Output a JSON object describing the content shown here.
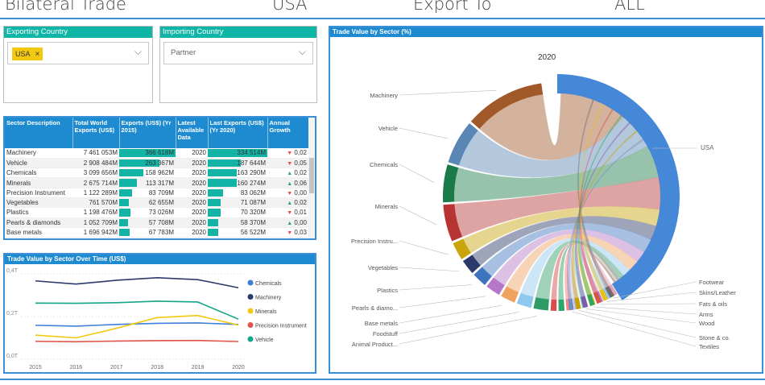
{
  "header": {
    "title": "Bilateral Trade",
    "country": "USA",
    "flow": "Export To",
    "partner": "ALL"
  },
  "exporting": {
    "title": "Exporting Country",
    "chip": "USA",
    "chip_remove": "×",
    "chevron": "⌵"
  },
  "importing": {
    "title": "Importing Country",
    "placeholder": "Partner",
    "chevron": "⌵"
  },
  "table": {
    "headers": [
      "Sector Description",
      "Total World Exports (US$)",
      "Exports (US$) (Yr 2015)",
      "Latest Available Data",
      "Last Exports (US$) (Yr 2020)",
      "Annual Growth"
    ],
    "rows": [
      {
        "sector": "Machinery",
        "total": "7 461 053M",
        "exp2015": "366 618M",
        "f2015": 1.0,
        "year": "2020",
        "last": "334 514M",
        "flast": 1.0,
        "dir": "down",
        "growth": "0,02"
      },
      {
        "sector": "Vehicle",
        "total": "2 908 484M",
        "exp2015": "263 367M",
        "f2015": 0.72,
        "year": "2020",
        "last": "187 644M",
        "flast": 0.56,
        "dir": "down",
        "growth": "0,05"
      },
      {
        "sector": "Chemicals",
        "total": "3 099 656M",
        "exp2015": "158 962M",
        "f2015": 0.43,
        "year": "2020",
        "last": "163 290M",
        "flast": 0.49,
        "dir": "up",
        "growth": "0,02"
      },
      {
        "sector": "Minerals",
        "total": "2 675 714M",
        "exp2015": "113 317M",
        "f2015": 0.31,
        "year": "2020",
        "last": "160 274M",
        "flast": 0.48,
        "dir": "up",
        "growth": "0,06"
      },
      {
        "sector": "Precision Instrument",
        "total": "1 122 289M",
        "exp2015": "83 709M",
        "f2015": 0.23,
        "year": "2020",
        "last": "83 062M",
        "flast": 0.25,
        "dir": "down",
        "growth": "0,00"
      },
      {
        "sector": "Vegetables",
        "total": "761 570M",
        "exp2015": "62 655M",
        "f2015": 0.17,
        "year": "2020",
        "last": "71 087M",
        "flast": 0.21,
        "dir": "up",
        "growth": "0,02"
      },
      {
        "sector": "Plastics",
        "total": "1 198 476M",
        "exp2015": "73 026M",
        "f2015": 0.2,
        "year": "2020",
        "last": "70 320M",
        "flast": 0.21,
        "dir": "down",
        "growth": "0,01"
      },
      {
        "sector": "Pearls & diamonds",
        "total": "1 052 709M",
        "exp2015": "57 708M",
        "f2015": 0.16,
        "year": "2020",
        "last": "58 370M",
        "flast": 0.17,
        "dir": "up",
        "growth": "0,00"
      },
      {
        "sector": "Base metals",
        "total": "1 696 942M",
        "exp2015": "67 783M",
        "f2015": 0.18,
        "year": "2020",
        "last": "56 522M",
        "flast": 0.17,
        "dir": "down",
        "growth": "0,03"
      }
    ]
  },
  "chart_data": [
    {
      "type": "line",
      "title": "Trade Value by Sector Over Time (US$)",
      "x": [
        2015,
        2016,
        2017,
        2018,
        2019,
        2020
      ],
      "y_ticks": [
        "0,4T",
        "0,2T",
        "0,0T"
      ],
      "ylim": [
        0,
        0.4
      ],
      "legend": "right",
      "series": [
        {
          "name": "Chemicals",
          "color": "#3d7fd6",
          "values": [
            0.159,
            0.155,
            0.163,
            0.168,
            0.17,
            0.163
          ]
        },
        {
          "name": "Machinery",
          "color": "#2b3a6b",
          "values": [
            0.367,
            0.352,
            0.37,
            0.382,
            0.373,
            0.335
          ]
        },
        {
          "name": "Minerals",
          "color": "#f2c811",
          "values": [
            0.113,
            0.1,
            0.145,
            0.195,
            0.205,
            0.16
          ]
        },
        {
          "name": "Precision Instrument",
          "color": "#e0534a",
          "values": [
            0.084,
            0.082,
            0.085,
            0.087,
            0.088,
            0.083
          ]
        },
        {
          "name": "Vehicle",
          "color": "#17a589",
          "values": [
            0.263,
            0.262,
            0.265,
            0.272,
            0.268,
            0.188
          ]
        }
      ]
    },
    {
      "type": "chord",
      "title": "Trade Value by Sector (%)",
      "subtitle": "2020",
      "target": "USA",
      "sectors_left": [
        {
          "name": "Machinery",
          "color": "#a2592a",
          "value": 334514
        },
        {
          "name": "Vehicle",
          "color": "#5a86b5",
          "value": 187644
        },
        {
          "name": "Chemicals",
          "color": "#1b7a4a",
          "value": 163290
        },
        {
          "name": "Minerals",
          "color": "#b83434",
          "value": 160274
        },
        {
          "name": "Precision Instru...",
          "color": "#c9a40a",
          "value": 83062
        },
        {
          "name": "Vegetables",
          "color": "#2b3a6b",
          "value": 71087
        },
        {
          "name": "Plastics",
          "color": "#3d74bd",
          "value": 70320
        },
        {
          "name": "Pearls & diamo...",
          "color": "#b577c7",
          "value": 58370
        },
        {
          "name": "Base metals",
          "color": "#f0a25f",
          "value": 56522
        },
        {
          "name": "Foodstuff",
          "color": "#8fc8ef",
          "value": 40000
        },
        {
          "name": "Animal Product...",
          "color": "#2e9a66",
          "value": 35000
        }
      ],
      "sectors_right": [
        {
          "name": "Footwear",
          "color": "#6d6d6d",
          "value": 8000
        },
        {
          "name": "Skins/Leather",
          "color": "#e8c01d",
          "value": 9000
        },
        {
          "name": "Fats & oils",
          "color": "#d9534f",
          "value": 11000
        },
        {
          "name": "Arms",
          "color": "#2ea56a",
          "value": 12000
        },
        {
          "name": "Wood",
          "color": "#7f5aa8",
          "value": 14000
        },
        {
          "name": "Stone & co.",
          "color": "#c5a200",
          "value": 20000
        },
        {
          "name": "Textiles",
          "color": "#6f8fc0",
          "value": 26000
        }
      ],
      "extra_colors": [
        "#d94d4d",
        "#2ea56a",
        "#ff7f7f",
        "#c6b7e6",
        "#79c6c6",
        "#f2c811",
        "#b577c7",
        "#8fc8ef",
        "#e8a0b8"
      ]
    }
  ]
}
